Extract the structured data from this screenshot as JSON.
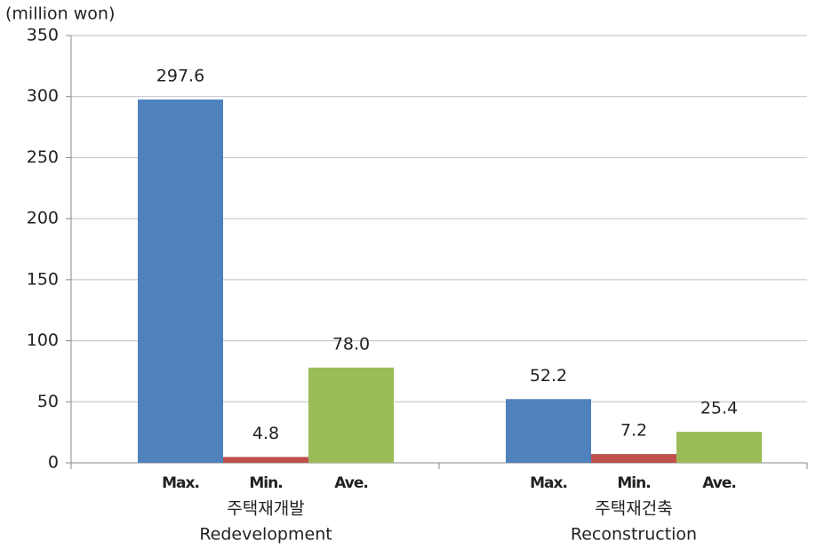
{
  "chart_data": {
    "type": "bar",
    "y_label": "(million won)",
    "categories": [
      "주택재개발",
      "주택재건축"
    ],
    "category_labels_en": [
      "Redevelopment",
      "Reconstruction"
    ],
    "series": [
      {
        "name": "Max.",
        "color": "#4f81bd",
        "values": [
          297.6,
          52.2
        ]
      },
      {
        "name": "Min.",
        "color": "#c0504d",
        "values": [
          4.8,
          7.2
        ]
      },
      {
        "name": "Ave.",
        "color": "#9bbb59",
        "values": [
          78,
          25.4
        ],
        "value_labels": [
          "78.0",
          "25.4"
        ]
      }
    ],
    "ylim": [
      0,
      350
    ],
    "yticks": [
      0,
      50,
      100,
      150,
      200,
      250,
      300,
      350
    ],
    "grid": true
  }
}
